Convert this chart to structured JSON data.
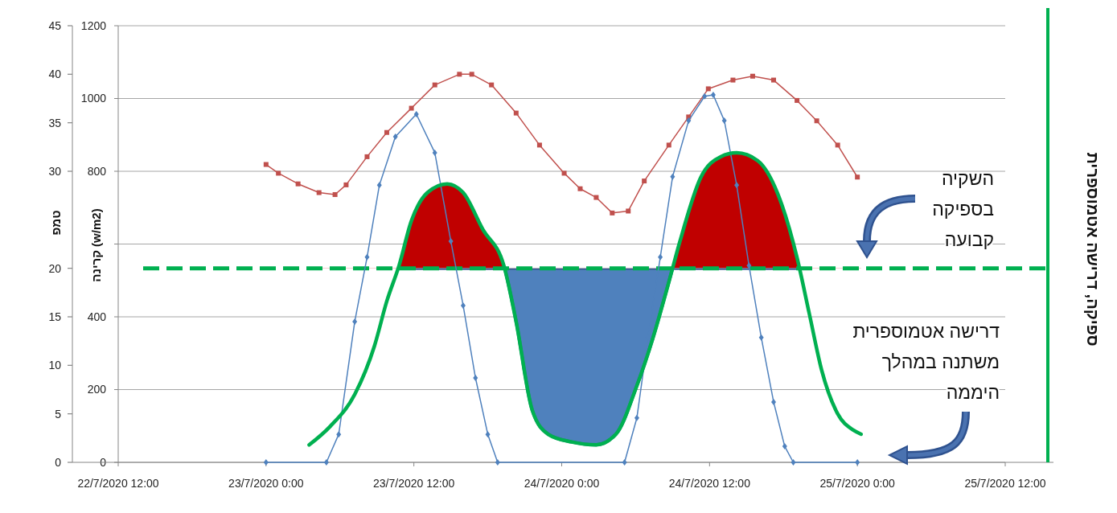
{
  "chart_data": {
    "type": "line",
    "ylabel": "טמפ",
    "y2label": "קרינה (w/m2)",
    "y3label": "ספיקה, דרישה אטמוספרית",
    "xlim": [
      "2020-07-22T12:00",
      "2020-07-25T12:00"
    ],
    "xticks": [
      {
        "value": "2020-07-22T12:00",
        "label": "22/7/2020 12:00"
      },
      {
        "value": "2020-07-23T00:00",
        "label": "23/7/2020 0:00"
      },
      {
        "value": "2020-07-23T12:00",
        "label": "23/7/2020 12:00"
      },
      {
        "value": "2020-07-24T00:00",
        "label": "24/7/2020 0:00"
      },
      {
        "value": "2020-07-24T12:00",
        "label": "24/7/2020 12:00"
      },
      {
        "value": "2020-07-25T00:00",
        "label": "25/7/2020 0:00"
      },
      {
        "value": "2020-07-25T12:00",
        "label": "25/7/2020 12:00"
      }
    ],
    "ylim": [
      0,
      45
    ],
    "yticks": [
      0,
      5,
      10,
      15,
      20,
      30,
      35,
      40,
      45
    ],
    "y2lim": [
      0,
      1200
    ],
    "y2ticks": [
      0,
      200,
      400,
      {
        "value": 600,
        "label": null
      },
      800,
      1000,
      1200
    ],
    "grid": "y2",
    "ref_lines": [
      {
        "axis": "y",
        "value": 20,
        "color": "#00b050",
        "line_style": "dashed"
      }
    ],
    "annotations": [
      "השקיה\nבספיקה\nקבועה",
      "דרישה אטמוספרית\nמשתנה במהלך\nהיממה"
    ],
    "series": [
      {
        "color": "#c0504d",
        "marker": "square",
        "x": [
          "2020-07-23T00:00",
          "2020-07-23T01:00",
          "2020-07-23T02:36",
          "2020-07-23T04:18",
          "2020-07-23T05:36",
          "2020-07-23T06:30",
          "2020-07-23T08:12",
          "2020-07-23T09:48",
          "2020-07-23T11:48",
          "2020-07-23T13:42",
          "2020-07-23T15:42",
          "2020-07-23T16:42",
          "2020-07-23T18:18",
          "2020-07-23T20:18",
          "2020-07-23T22:12",
          "2020-07-24T00:12",
          "2020-07-24T01:30",
          "2020-07-24T02:48",
          "2020-07-24T04:06",
          "2020-07-24T05:24",
          "2020-07-24T06:42",
          "2020-07-24T08:42",
          "2020-07-24T10:18",
          "2020-07-24T11:54",
          "2020-07-24T13:54",
          "2020-07-24T15:30",
          "2020-07-24T17:12",
          "2020-07-24T19:06",
          "2020-07-24T20:42",
          "2020-07-24T22:24",
          "2020-07-25T00:00"
        ],
        "values": [
          30.7,
          29.8,
          28.7,
          27.8,
          27.6,
          28.6,
          31.5,
          34.0,
          36.5,
          38.9,
          40.0,
          40.0,
          38.9,
          36.0,
          32.7,
          29.8,
          28.2,
          27.3,
          25.7,
          25.9,
          29.0,
          32.7,
          35.6,
          38.5,
          39.4,
          39.8,
          39.4,
          37.3,
          35.2,
          32.7,
          29.4
        ]
      },
      {
        "axis": "y2",
        "color": "#4f81bd",
        "marker": "diamond",
        "x": [
          "2020-07-23T00:00",
          "2020-07-23T04:54",
          "2020-07-23T05:54",
          "2020-07-23T07:12",
          "2020-07-23T08:12",
          "2020-07-23T09:12",
          "2020-07-23T10:30",
          "2020-07-23T12:12",
          "2020-07-23T13:42",
          "2020-07-23T15:00",
          "2020-07-23T16:00",
          "2020-07-23T17:00",
          "2020-07-23T18:00",
          "2020-07-23T18:48",
          "2020-07-24T05:06",
          "2020-07-24T06:06",
          "2020-07-24T07:00",
          "2020-07-24T08:00",
          "2020-07-24T09:00",
          "2020-07-24T10:18",
          "2020-07-24T11:36",
          "2020-07-24T12:18",
          "2020-07-24T13:12",
          "2020-07-24T14:12",
          "2020-07-24T15:12",
          "2020-07-24T16:12",
          "2020-07-24T17:12",
          "2020-07-24T18:06",
          "2020-07-24T18:48",
          "2020-07-25T00:00"
        ],
        "values": [
          0,
          0,
          77,
          387,
          564,
          762,
          895,
          957,
          851,
          608,
          431,
          232,
          77,
          0,
          0,
          122,
          343,
          564,
          785,
          939,
          1006,
          1010,
          939,
          762,
          541,
          343,
          166,
          44,
          0,
          0
        ]
      },
      {
        "color": "#00b050",
        "marker": "none",
        "x": [
          "2020-07-23T03:30",
          "2020-07-23T05:12",
          "2020-07-23T07:12",
          "2020-07-23T08:48",
          "2020-07-23T09:48",
          "2020-07-23T10:48",
          "2020-07-23T11:48",
          "2020-07-23T13:06",
          "2020-07-23T14:42",
          "2020-07-23T16:00",
          "2020-07-23T17:36",
          "2020-07-23T19:18",
          "2020-07-23T20:18",
          "2020-07-23T21:36",
          "2020-07-23T22:54",
          "2020-07-24T00:48",
          "2020-07-24T02:48",
          "2020-07-24T04:24",
          "2020-07-24T06:06",
          "2020-07-24T07:24",
          "2020-07-24T08:42",
          "2020-07-24T09:36",
          "2020-07-24T11:18",
          "2020-07-24T12:54",
          "2020-07-24T14:12",
          "2020-07-24T15:54",
          "2020-07-24T17:30",
          "2020-07-24T19:06",
          "2020-07-24T20:06",
          "2020-07-24T21:06",
          "2020-07-24T22:24",
          "2020-07-24T23:42",
          "2020-07-25T00:18"
        ],
        "values": [
          1.8,
          3.7,
          7.0,
          12.0,
          16.6,
          20.3,
          24.9,
          27.8,
          28.7,
          27.8,
          24.0,
          20.3,
          14.5,
          5.4,
          2.9,
          2.1,
          1.8,
          2.9,
          7.9,
          12.8,
          18.6,
          22.8,
          29.4,
          31.5,
          31.9,
          31.1,
          27.8,
          21.1,
          15.3,
          9.5,
          5.0,
          3.3,
          2.9
        ]
      }
    ]
  }
}
